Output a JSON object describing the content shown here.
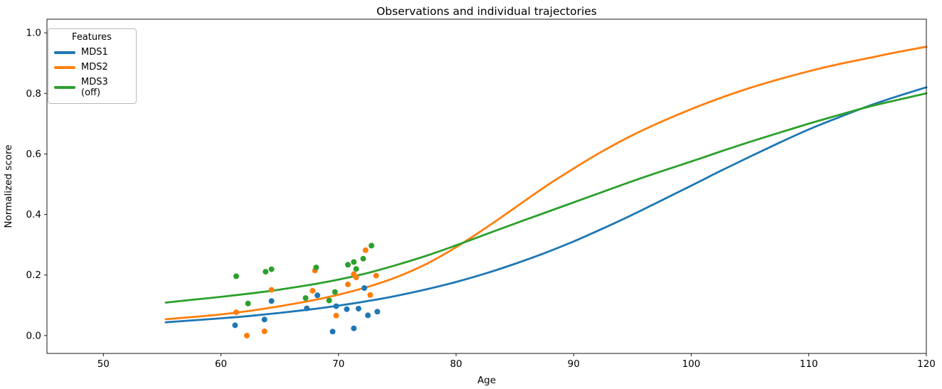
{
  "figure": {
    "title": "Observations and individual trajectories",
    "xlabel": "Age",
    "ylabel": "Normalized score"
  },
  "legend": {
    "title": "Features",
    "items": [
      {
        "label": "MDS1",
        "color": "#1f77b4"
      },
      {
        "label": "MDS2",
        "color": "#ff7f0e"
      },
      {
        "label": "MDS3 (off)",
        "color": "#2ca02c"
      }
    ]
  },
  "chart_data": {
    "type": "line+scatter",
    "title": "Observations and individual trajectories",
    "xlabel": "Age",
    "ylabel": "Normalized score",
    "xlim": [
      45.2,
      120
    ],
    "ylim": [
      -0.059,
      1.045
    ],
    "grid": false,
    "legend_position": "upper left",
    "x_ticks": [
      50,
      60,
      70,
      80,
      90,
      100,
      110,
      120
    ],
    "y_ticks": [
      {
        "value": 0.0,
        "label": "0.0"
      },
      {
        "value": 0.2,
        "label": "0.2"
      },
      {
        "value": 0.4,
        "label": "0.4"
      },
      {
        "value": 0.6,
        "label": "0.6"
      },
      {
        "value": 0.8,
        "label": "0.8"
      },
      {
        "value": 1.0,
        "label": "1.0"
      }
    ],
    "curve_x": [
      55.3,
      57.5,
      60,
      62.5,
      65,
      67.5,
      70,
      72.5,
      75,
      77.5,
      80,
      82.5,
      85,
      87.5,
      90,
      92.5,
      95,
      97.5,
      100,
      102.5,
      105,
      107.5,
      110,
      112.5,
      115,
      117.5,
      120
    ],
    "series": [
      {
        "name": "MDS1",
        "color": "#1f77b4",
        "curve": [
          0.044,
          0.05,
          0.057,
          0.065,
          0.075,
          0.086,
          0.099,
          0.114,
          0.132,
          0.153,
          0.177,
          0.205,
          0.237,
          0.272,
          0.311,
          0.354,
          0.399,
          0.447,
          0.495,
          0.544,
          0.591,
          0.637,
          0.681,
          0.72,
          0.757,
          0.79,
          0.82
        ],
        "scatter": [
          [
            61.2,
            0.034
          ],
          [
            63.7,
            0.053
          ],
          [
            64.3,
            0.114
          ],
          [
            67.3,
            0.09
          ],
          [
            68.2,
            0.133
          ],
          [
            69.5,
            0.013
          ],
          [
            69.8,
            0.097
          ],
          [
            70.7,
            0.087
          ],
          [
            71.3,
            0.024
          ],
          [
            71.7,
            0.089
          ],
          [
            72.2,
            0.157
          ],
          [
            72.5,
            0.067
          ],
          [
            73.3,
            0.079
          ]
        ]
      },
      {
        "name": "MDS2",
        "color": "#ff7f0e",
        "curve": [
          0.054,
          0.061,
          0.07,
          0.082,
          0.097,
          0.114,
          0.135,
          0.161,
          0.194,
          0.237,
          0.292,
          0.355,
          0.422,
          0.49,
          0.552,
          0.61,
          0.662,
          0.707,
          0.748,
          0.785,
          0.818,
          0.847,
          0.873,
          0.896,
          0.916,
          0.936,
          0.954
        ],
        "scatter": [
          [
            61.3,
            0.077
          ],
          [
            62.2,
            0.0
          ],
          [
            63.7,
            0.014
          ],
          [
            64.3,
            0.151
          ],
          [
            67.8,
            0.148
          ],
          [
            68.0,
            0.215
          ],
          [
            69.8,
            0.066
          ],
          [
            70.8,
            0.169
          ],
          [
            71.3,
            0.203
          ],
          [
            71.5,
            0.192
          ],
          [
            72.3,
            0.282
          ],
          [
            72.7,
            0.134
          ],
          [
            73.2,
            0.198
          ]
        ]
      },
      {
        "name": "MDS3 (off)",
        "color": "#2ca02c",
        "curve": [
          0.109,
          0.118,
          0.128,
          0.139,
          0.152,
          0.167,
          0.185,
          0.207,
          0.234,
          0.264,
          0.298,
          0.334,
          0.37,
          0.405,
          0.44,
          0.475,
          0.51,
          0.543,
          0.575,
          0.608,
          0.64,
          0.67,
          0.7,
          0.728,
          0.755,
          0.778,
          0.8
        ],
        "scatter": [
          [
            61.3,
            0.196
          ],
          [
            62.3,
            0.106
          ],
          [
            63.8,
            0.211
          ],
          [
            64.3,
            0.219
          ],
          [
            67.2,
            0.124
          ],
          [
            68.1,
            0.225
          ],
          [
            69.2,
            0.116
          ],
          [
            69.7,
            0.144
          ],
          [
            70.8,
            0.234
          ],
          [
            71.3,
            0.243
          ],
          [
            71.5,
            0.22
          ],
          [
            72.1,
            0.254
          ],
          [
            72.8,
            0.297
          ]
        ]
      }
    ]
  }
}
